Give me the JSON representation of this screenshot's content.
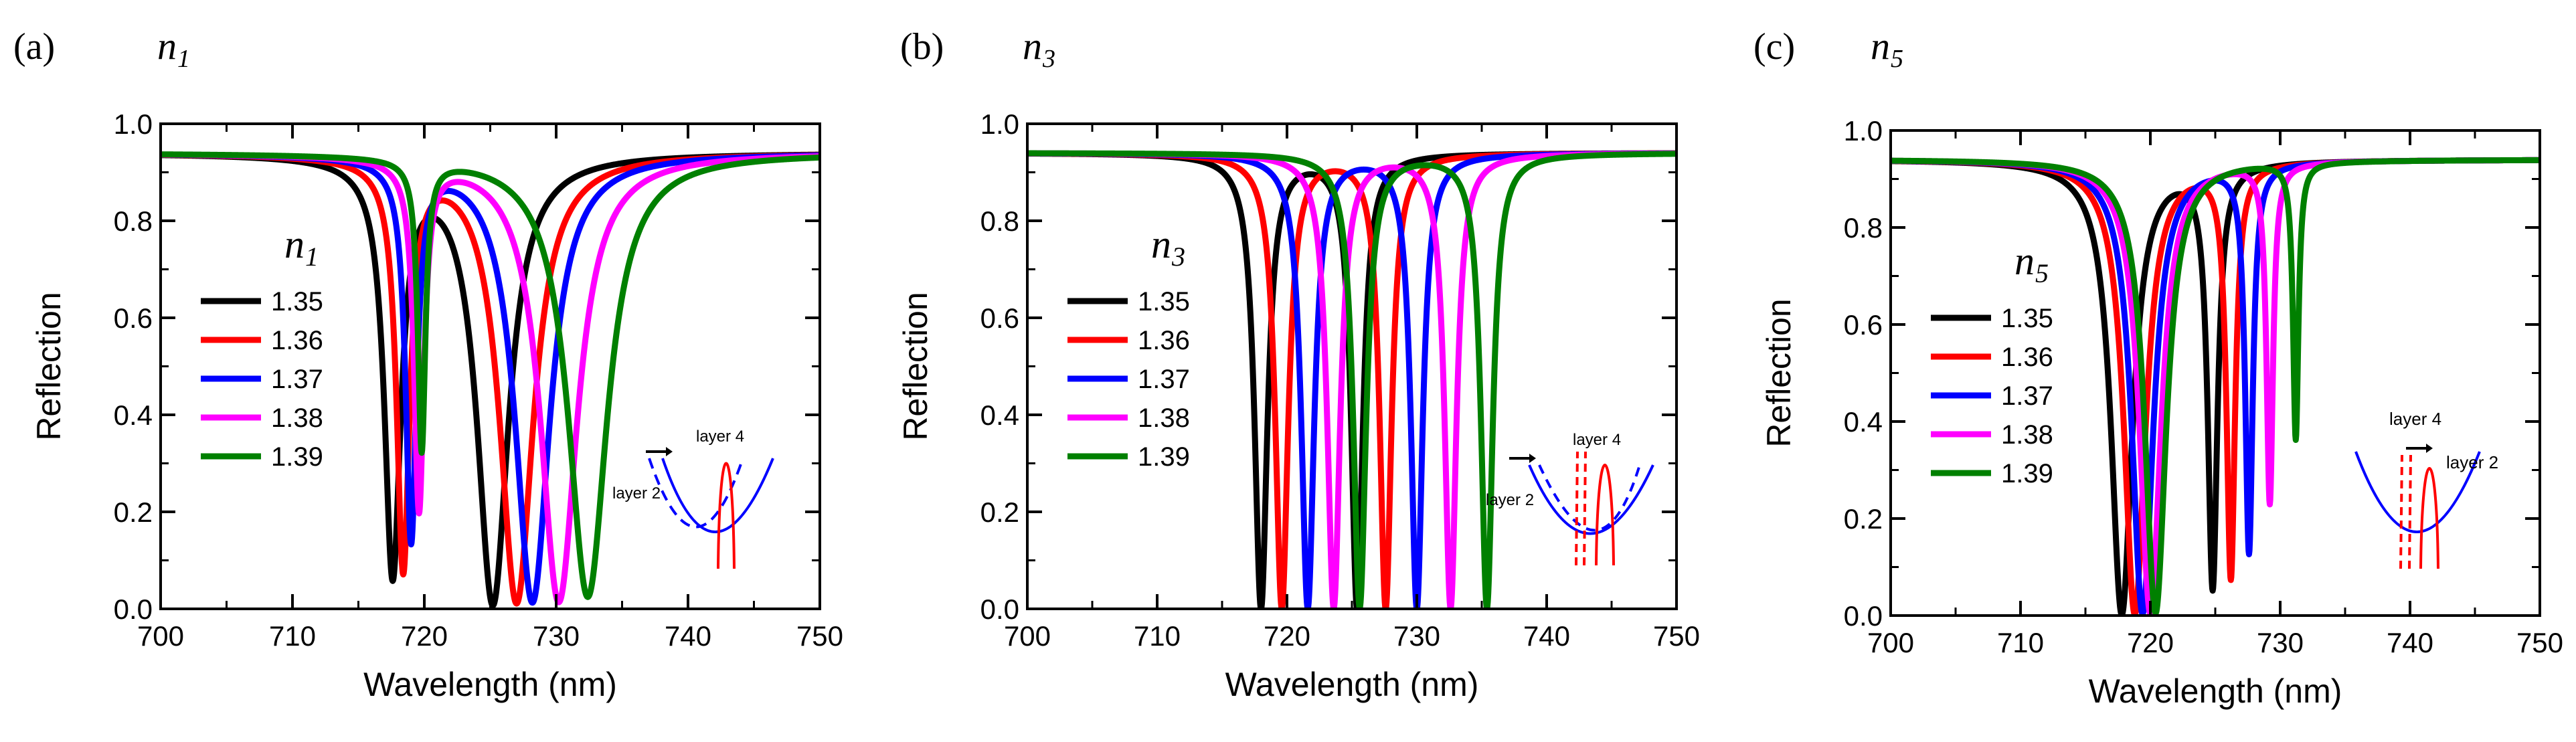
{
  "chart_data": [
    {
      "panel_label": "(a)",
      "variable": "n",
      "subscript": "1",
      "type": "line",
      "xlabel": "Wavelength (nm)",
      "ylabel": "Reflection",
      "xlim": [
        700,
        750
      ],
      "ylim": [
        0,
        1.0
      ],
      "xticks": [
        "700",
        "710",
        "720",
        "730",
        "740",
        "750"
      ],
      "yticks": [
        "0.0",
        "0.2",
        "0.4",
        "0.6",
        "0.8",
        "1.0"
      ],
      "legend_title": "n",
      "legend_subscript": "1",
      "series": [
        {
          "name": "1.35",
          "color": "#000000",
          "dips": [
            {
              "x": 717.6,
              "depth": 0.85,
              "w": 0.75
            },
            {
              "x": 725.2,
              "depth": 0.925,
              "w": 1.45
            }
          ]
        },
        {
          "name": "1.36",
          "color": "#ff0000",
          "dips": [
            {
              "x": 718.4,
              "depth": 0.84,
              "w": 0.6
            },
            {
              "x": 727.0,
              "depth": 0.925,
              "w": 1.55
            }
          ]
        },
        {
          "name": "1.37",
          "color": "#0000ff",
          "dips": [
            {
              "x": 719.0,
              "depth": 0.78,
              "w": 0.5
            },
            {
              "x": 728.2,
              "depth": 0.925,
              "w": 1.6
            }
          ]
        },
        {
          "name": "1.38",
          "color": "#ff00ff",
          "dips": [
            {
              "x": 719.6,
              "depth": 0.72,
              "w": 0.45
            },
            {
              "x": 730.2,
              "depth": 0.925,
              "w": 1.7
            }
          ]
        },
        {
          "name": "1.39",
          "color": "#008000",
          "dips": [
            {
              "x": 719.8,
              "depth": 0.6,
              "w": 0.35
            },
            {
              "x": 732.4,
              "depth": 0.915,
              "w": 1.8
            }
          ]
        }
      ],
      "inset": {
        "layout": "a",
        "labels": [
          "layer 4",
          "layer 2"
        ]
      }
    },
    {
      "panel_label": "(b)",
      "variable": "n",
      "subscript": "3",
      "type": "line",
      "xlabel": "Wavelength (nm)",
      "ylabel": "Reflection",
      "xlim": [
        700,
        750
      ],
      "ylim": [
        0,
        1.0
      ],
      "xticks": [
        "700",
        "710",
        "720",
        "730",
        "740",
        "750"
      ],
      "yticks": [
        "0.0",
        "0.2",
        "0.4",
        "0.6",
        "0.8",
        "1.0"
      ],
      "legend_title": "n",
      "legend_subscript": "3",
      "series": [
        {
          "name": "1.35",
          "color": "#000000",
          "dips": [
            {
              "x": 718.0,
              "depth": 0.935,
              "w": 0.6
            },
            {
              "x": 725.4,
              "depth": 0.935,
              "w": 0.55
            }
          ]
        },
        {
          "name": "1.36",
          "color": "#ff0000",
          "dips": [
            {
              "x": 719.6,
              "depth": 0.935,
              "w": 0.6
            },
            {
              "x": 727.6,
              "depth": 0.935,
              "w": 0.55
            }
          ]
        },
        {
          "name": "1.37",
          "color": "#0000ff",
          "dips": [
            {
              "x": 721.6,
              "depth": 0.935,
              "w": 0.6
            },
            {
              "x": 730.0,
              "depth": 0.935,
              "w": 0.55
            }
          ]
        },
        {
          "name": "1.38",
          "color": "#ff00ff",
          "dips": [
            {
              "x": 723.6,
              "depth": 0.935,
              "w": 0.6
            },
            {
              "x": 732.6,
              "depth": 0.935,
              "w": 0.55
            }
          ]
        },
        {
          "name": "1.39",
          "color": "#008000",
          "dips": [
            {
              "x": 725.6,
              "depth": 0.935,
              "w": 0.6
            },
            {
              "x": 735.4,
              "depth": 0.935,
              "w": 0.55
            }
          ]
        }
      ],
      "inset": {
        "layout": "b",
        "labels": [
          "layer 4",
          "layer 2"
        ]
      }
    },
    {
      "panel_label": "(c)",
      "variable": "n",
      "subscript": "5",
      "type": "line",
      "xlabel": "Wavelength (nm)",
      "ylabel": "Reflection",
      "xlim": [
        700,
        750
      ],
      "ylim": [
        0,
        1.0
      ],
      "xticks": [
        "700",
        "710",
        "720",
        "730",
        "740",
        "750"
      ],
      "yticks": [
        "0.0",
        "0.2",
        "0.4",
        "0.6",
        "0.8",
        "1.0"
      ],
      "legend_title": "n",
      "legend_subscript": "5",
      "series": [
        {
          "name": "1.35",
          "color": "#000000",
          "dips": [
            {
              "x": 717.8,
              "depth": 0.935,
              "w": 1.0
            },
            {
              "x": 724.8,
              "depth": 0.87,
              "w": 0.45
            }
          ]
        },
        {
          "name": "1.36",
          "color": "#ff0000",
          "dips": [
            {
              "x": 718.8,
              "depth": 0.935,
              "w": 1.0
            },
            {
              "x": 726.2,
              "depth": 0.85,
              "w": 0.4
            }
          ]
        },
        {
          "name": "1.37",
          "color": "#0000ff",
          "dips": [
            {
              "x": 719.4,
              "depth": 0.935,
              "w": 1.0
            },
            {
              "x": 727.6,
              "depth": 0.8,
              "w": 0.35
            }
          ]
        },
        {
          "name": "1.38",
          "color": "#ff00ff",
          "dips": [
            {
              "x": 720.0,
              "depth": 0.935,
              "w": 1.0
            },
            {
              "x": 729.2,
              "depth": 0.7,
              "w": 0.3
            }
          ]
        },
        {
          "name": "1.39",
          "color": "#008000",
          "dips": [
            {
              "x": 720.4,
              "depth": 0.935,
              "w": 1.0
            },
            {
              "x": 731.2,
              "depth": 0.57,
              "w": 0.25
            }
          ]
        }
      ],
      "inset": {
        "layout": "c",
        "labels": [
          "layer 4",
          "layer 2"
        ]
      }
    }
  ]
}
